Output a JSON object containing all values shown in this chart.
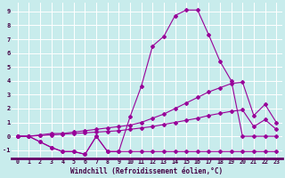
{
  "xlabel": "Windchill (Refroidissement éolien,°C)",
  "bg_color": "#c8ecec",
  "grid_color": "#ffffff",
  "line_color": "#990099",
  "xlim": [
    -0.5,
    23.5
  ],
  "ylim": [
    -1.6,
    9.6
  ],
  "xticks": [
    0,
    1,
    2,
    3,
    4,
    5,
    6,
    7,
    8,
    9,
    10,
    11,
    12,
    13,
    14,
    15,
    16,
    17,
    18,
    19,
    20,
    21,
    22,
    23
  ],
  "yticks": [
    -1,
    0,
    1,
    2,
    3,
    4,
    5,
    6,
    7,
    8,
    9
  ],
  "line1_x": [
    0,
    1,
    2,
    3,
    4,
    5,
    6,
    7,
    8,
    9,
    10,
    11,
    12,
    13,
    14,
    15,
    16,
    17,
    18,
    19,
    20,
    21,
    22,
    23
  ],
  "line1_y": [
    0.0,
    0.0,
    -0.4,
    -0.8,
    -1.1,
    -1.1,
    -1.3,
    0.0,
    -1.1,
    -1.1,
    -1.1,
    -1.1,
    -1.1,
    -1.1,
    -1.1,
    -1.1,
    -1.1,
    -1.1,
    -1.1,
    -1.1,
    -1.1,
    -1.1,
    -1.1,
    -1.1
  ],
  "line2_x": [
    0,
    1,
    2,
    3,
    4,
    5,
    6,
    7,
    8,
    9,
    10,
    11,
    12,
    13,
    14,
    15,
    16,
    17,
    18,
    19,
    20,
    21,
    22,
    23
  ],
  "line2_y": [
    0.0,
    0.0,
    -0.4,
    -0.8,
    -1.1,
    -1.1,
    -1.3,
    0.0,
    -1.1,
    -1.1,
    1.4,
    3.6,
    6.5,
    7.2,
    8.7,
    9.1,
    9.1,
    7.3,
    5.4,
    4.0,
    0.0,
    0.0,
    0.0,
    0.0
  ],
  "line3_x": [
    0,
    1,
    2,
    3,
    4,
    5,
    6,
    7,
    8,
    9,
    10,
    11,
    12,
    13,
    14,
    15,
    16,
    17,
    18,
    19,
    20,
    21,
    22,
    23
  ],
  "line3_y": [
    0.0,
    0.0,
    0.1,
    0.2,
    0.2,
    0.3,
    0.4,
    0.5,
    0.6,
    0.7,
    0.8,
    1.0,
    1.3,
    1.6,
    2.0,
    2.4,
    2.8,
    3.2,
    3.5,
    3.8,
    3.9,
    1.5,
    2.3,
    1.0
  ],
  "line4_x": [
    0,
    1,
    2,
    3,
    4,
    5,
    6,
    7,
    8,
    9,
    10,
    11,
    12,
    13,
    14,
    15,
    16,
    17,
    18,
    19,
    20,
    21,
    22,
    23
  ],
  "line4_y": [
    0.0,
    0.0,
    0.05,
    0.1,
    0.15,
    0.2,
    0.25,
    0.3,
    0.35,
    0.4,
    0.5,
    0.6,
    0.7,
    0.85,
    1.0,
    1.15,
    1.3,
    1.5,
    1.65,
    1.8,
    1.9,
    0.7,
    1.2,
    0.5
  ]
}
